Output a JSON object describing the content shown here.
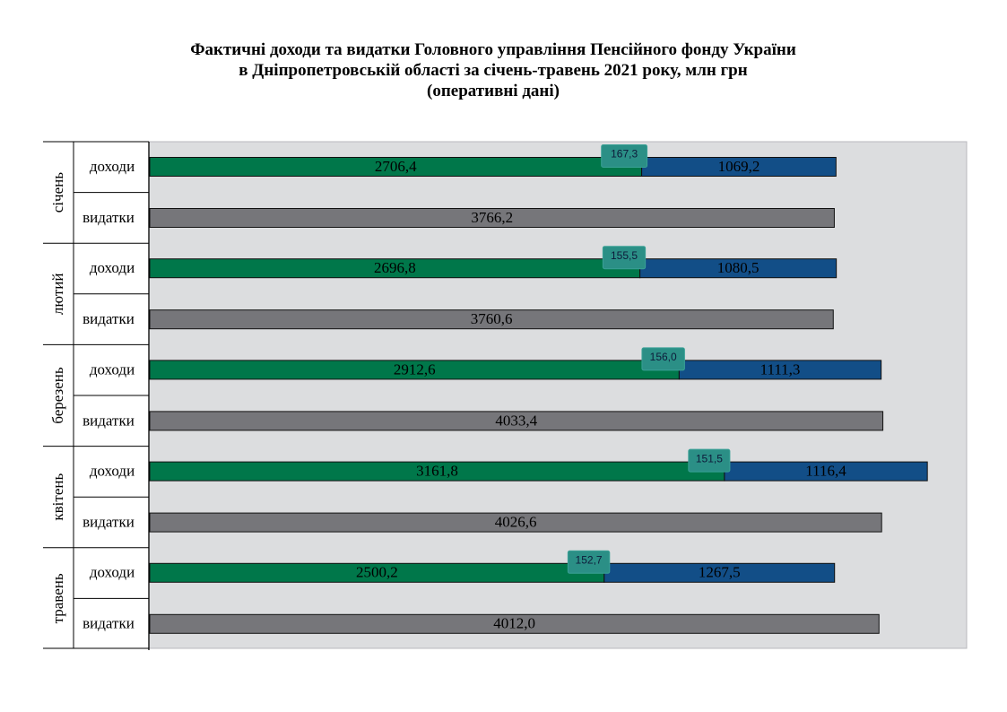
{
  "chart_data": {
    "type": "bar",
    "orientation": "horizontal",
    "stacked": true,
    "title_lines": [
      "Фактичні доходи та видатки Головного управління Пенсійного фонду України",
      "в Дніпропетровській області за січень-травень 2021 року,  млн грн",
      "(оперативні дані)"
    ],
    "groups": [
      "січень",
      "лютий",
      "березень",
      "квітень",
      "травень"
    ],
    "row_labels": [
      "доходи",
      "видатки"
    ],
    "income": {
      "segment_1": [
        2706.4,
        2696.8,
        2912.6,
        3161.8,
        2500.2
      ],
      "segment_2": [
        167.3,
        155.5,
        156.0,
        151.5,
        152.7
      ],
      "segment_3": [
        1069.2,
        1080.5,
        1111.3,
        1116.4,
        1267.5
      ]
    },
    "expenses": [
      3766.2,
      3760.6,
      4033.4,
      4026.6,
      4012.0
    ],
    "labels": {
      "income_segment_1": [
        "2706,4",
        "2696,8",
        "2912,6",
        "3161,8",
        "2500,2"
      ],
      "income_segment_2": [
        "167,3",
        "155,5",
        "156,0",
        "151,5",
        "152,7"
      ],
      "income_segment_3": [
        "1069,2",
        "1080,5",
        "1111,3",
        "1116,4",
        "1267,5"
      ],
      "expenses": [
        "3766,2",
        "3760,6",
        "4033,4",
        "4026,6",
        "4012,0"
      ]
    },
    "xlim": [
      0,
      4600
    ],
    "colors": {
      "segment_1": "#00774a",
      "segment_2": "#2b8f86",
      "segment_3": "#124e87",
      "expenses": "#76767a",
      "plot_bg": "#dcdddf"
    }
  }
}
